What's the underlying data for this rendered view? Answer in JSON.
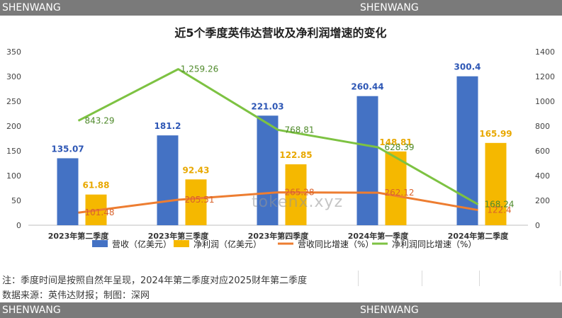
{
  "header": {
    "brand_left": "SHENWANG",
    "brand_right": "SHENWANG"
  },
  "footer": {
    "brand_left": "SHENWANG",
    "brand_right": "SHENWANG"
  },
  "watermark": "tokenx.xyz",
  "notes": {
    "line1": "注：季度时间是按照自然年呈现，2024年第二季度对应2025财年第二季度",
    "line2": "数据来源：英伟达财报；制图：深网"
  },
  "chart_data": {
    "type": "bar",
    "title": "近5个季度英伟达营收及净利润增速的变化",
    "categories": [
      "2023年第二季度",
      "2023年第三季度",
      "2023年第四季度",
      "2024年第一季度",
      "2024年第二季度"
    ],
    "series": [
      {
        "name": "营收（亿美元）",
        "kind": "bar",
        "axis": "left",
        "color": "#4472c4",
        "label_color": "#2e57b5",
        "values": [
          135.07,
          181.2,
          221.03,
          260.44,
          300.4
        ],
        "labels": [
          "135.07",
          "181.2",
          "221.03",
          "260.44",
          "300.4"
        ]
      },
      {
        "name": "净利润（亿美元）",
        "kind": "bar",
        "axis": "left",
        "color": "#f5b800",
        "label_color": "#e8a800",
        "values": [
          61.88,
          92.43,
          122.85,
          148.81,
          165.99
        ],
        "labels": [
          "61.88",
          "92.43",
          "122.85",
          "148.81",
          "165.99"
        ]
      },
      {
        "name": "营收同比增速（%）",
        "kind": "line",
        "axis": "right",
        "color": "#ed7d31",
        "label_color": "#d9622b",
        "values": [
          101.48,
          205.51,
          265.28,
          262.12,
          122.4
        ],
        "labels": [
          "101.48",
          "205.51",
          "265.28",
          "262.12",
          "122.4"
        ]
      },
      {
        "name": "净利润同比增速（%）",
        "kind": "line",
        "axis": "right",
        "color": "#7dc242",
        "label_color": "#4f8a2b",
        "values": [
          843.29,
          1259.26,
          768.81,
          628.39,
          168.24
        ],
        "labels": [
          "843.29",
          "1,259.26",
          "768.81",
          "628.39",
          "168.24"
        ]
      }
    ],
    "y_left": {
      "lim": [
        0,
        350
      ],
      "ticks": [
        0,
        50,
        100,
        150,
        200,
        250,
        300,
        350
      ]
    },
    "y_right": {
      "lim": [
        0,
        1400
      ],
      "ticks": [
        0,
        200,
        400,
        600,
        800,
        1000,
        1200,
        1400
      ]
    },
    "grid": false,
    "legend": "bottom"
  }
}
